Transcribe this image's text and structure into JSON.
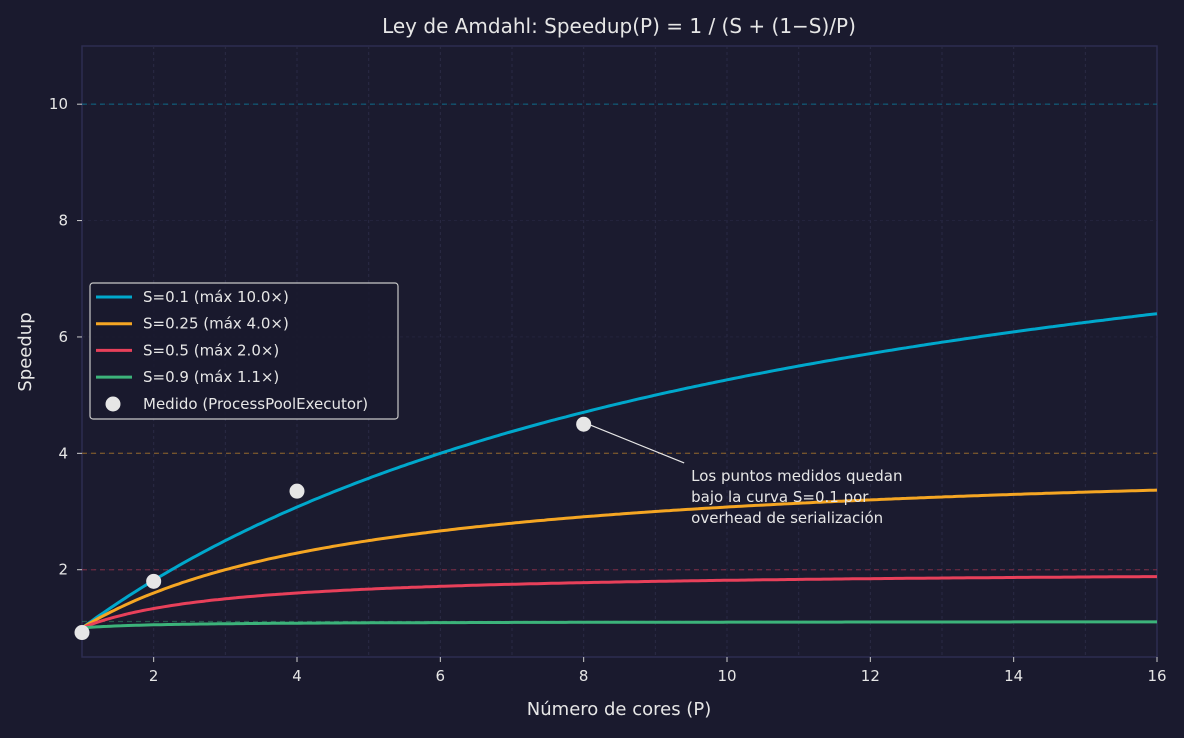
{
  "chart_data": {
    "type": "line",
    "title": "Ley de Amdahl: Speedup(P) = 1 / (S + (1−S)/P)",
    "xlabel": "Número de cores (P)",
    "ylabel": "Speedup",
    "xlim": [
      1,
      16
    ],
    "ylim": [
      0.5,
      11
    ],
    "xticks": [
      2,
      4,
      6,
      8,
      10,
      12,
      14,
      16
    ],
    "yticks": [
      2,
      4,
      6,
      8,
      10
    ],
    "grid": true,
    "legend_position": "center-left",
    "series": [
      {
        "name": "S=0.1 (máx 10.0×)",
        "s": 0.1,
        "asymptote": 10.0,
        "color": "#00a8cc"
      },
      {
        "name": "S=0.25 (máx 4.0×)",
        "s": 0.25,
        "asymptote": 4.0,
        "color": "#f5a623"
      },
      {
        "name": "S=0.5 (máx 2.0×)",
        "s": 0.5,
        "asymptote": 2.0,
        "color": "#e8405a"
      },
      {
        "name": "S=0.9 (máx 1.1×)",
        "s": 0.9,
        "asymptote": 1.11,
        "color": "#3cb37a"
      }
    ],
    "measured": {
      "name": "Medido (ProcessPoolExecutor)",
      "color": "#e6e6e6",
      "x": [
        1,
        2,
        4,
        8
      ],
      "y": [
        0.92,
        1.8,
        3.35,
        4.5
      ]
    },
    "annotation": {
      "lines": [
        "Los puntos medidos quedan",
        "bajo la curva S=0.1 por",
        "overhead de serialización"
      ],
      "target": [
        8,
        4.5
      ],
      "text_at": [
        9.5,
        3.8
      ]
    }
  }
}
